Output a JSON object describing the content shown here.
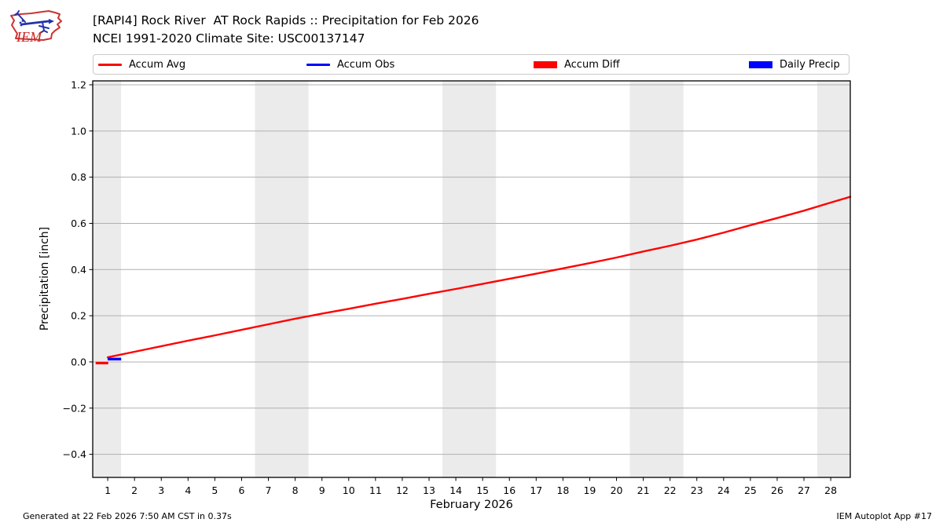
{
  "header": {
    "logo_text": "IEM",
    "title_line1": "[RAPI4] Rock River  AT Rock Rapids :: Precipitation for Feb 2026",
    "title_line2": "NCEI 1991-2020 Climate Site: USC00137147"
  },
  "legend": {
    "items": [
      {
        "label": "Accum Avg",
        "color": "#ff0000",
        "swatch": "line"
      },
      {
        "label": "Accum Obs",
        "color": "#0000ff",
        "swatch": "line"
      },
      {
        "label": "Accum Diff",
        "color": "#ff0000",
        "swatch": "patch"
      },
      {
        "label": "Daily Precip",
        "color": "#0000ff",
        "swatch": "patch"
      }
    ]
  },
  "footer": {
    "generated": "Generated at 22 Feb 2026 7:50 AM CST in 0.37s",
    "app": "IEM Autoplot App #17"
  },
  "chart_data": {
    "type": "line",
    "title": "[RAPI4] Rock River  AT Rock Rapids :: Precipitation for Feb 2026",
    "subtitle": "NCEI 1991-2020 Climate Site: USC00137147",
    "xlabel": "February 2026",
    "ylabel": "Precipitation [inch]",
    "xlim": [
      0.44,
      28.73
    ],
    "ylim": [
      -0.5,
      1.217
    ],
    "grid": "horizontal",
    "grid_color": "#b0b0b0",
    "spine_color": "#000000",
    "weekend_band_color": "#ebebeb",
    "weekend_bands": [
      [
        0.44,
        1.5
      ],
      [
        6.5,
        8.5
      ],
      [
        13.5,
        15.5
      ],
      [
        20.5,
        22.5
      ],
      [
        27.5,
        28.73
      ]
    ],
    "xticks": [
      1,
      2,
      3,
      4,
      5,
      6,
      7,
      8,
      9,
      10,
      11,
      12,
      13,
      14,
      15,
      16,
      17,
      18,
      19,
      20,
      21,
      22,
      23,
      24,
      25,
      26,
      27,
      28
    ],
    "xtick_labels": [
      "1",
      "2",
      "3",
      "4",
      "5",
      "6",
      "7",
      "8",
      "9",
      "10",
      "11",
      "12",
      "13",
      "14",
      "15",
      "16",
      "17",
      "18",
      "19",
      "20",
      "21",
      "22",
      "23",
      "24",
      "25",
      "26",
      "27",
      "28"
    ],
    "yticks": [
      -0.4,
      -0.2,
      0.0,
      0.2,
      0.4,
      0.6,
      0.8,
      1.0,
      1.2
    ],
    "ytick_labels": [
      "−0.4",
      "−0.2",
      "0.0",
      "0.2",
      "0.4",
      "0.6",
      "0.8",
      "1.0",
      "1.2"
    ],
    "series": [
      {
        "name": "Accum Avg",
        "style": "line",
        "color": "#ff0000",
        "line_width": 2.4,
        "x": [
          1,
          2,
          3,
          4,
          5,
          6,
          7,
          8,
          9,
          10,
          11,
          12,
          13,
          14,
          15,
          16,
          17,
          18,
          19,
          20,
          21,
          22,
          23,
          24,
          25,
          26,
          27,
          28,
          28.73
        ],
        "y": [
          0.02,
          0.044,
          0.068,
          0.092,
          0.115,
          0.139,
          0.163,
          0.187,
          0.209,
          0.23,
          0.252,
          0.273,
          0.295,
          0.316,
          0.338,
          0.36,
          0.382,
          0.405,
          0.428,
          0.452,
          0.478,
          0.503,
          0.53,
          0.56,
          0.592,
          0.623,
          0.655,
          0.69,
          0.715
        ]
      },
      {
        "name": "Accum Obs",
        "style": "segment",
        "color": "#0000ff",
        "line_width": 3.2,
        "x": [
          1.0,
          1.5
        ],
        "y": [
          0.012,
          0.012
        ]
      },
      {
        "name": "Accum Diff",
        "style": "segment",
        "color": "#ff0000",
        "line_width": 3.2,
        "x": [
          0.55,
          1.02
        ],
        "y": [
          -0.005,
          -0.005
        ]
      },
      {
        "name": "Daily Precip",
        "style": "segment",
        "color": "#0000ff",
        "line_width": 3.2,
        "x": [
          1.0,
          1.5
        ],
        "y": [
          0.012,
          0.012
        ]
      }
    ]
  }
}
